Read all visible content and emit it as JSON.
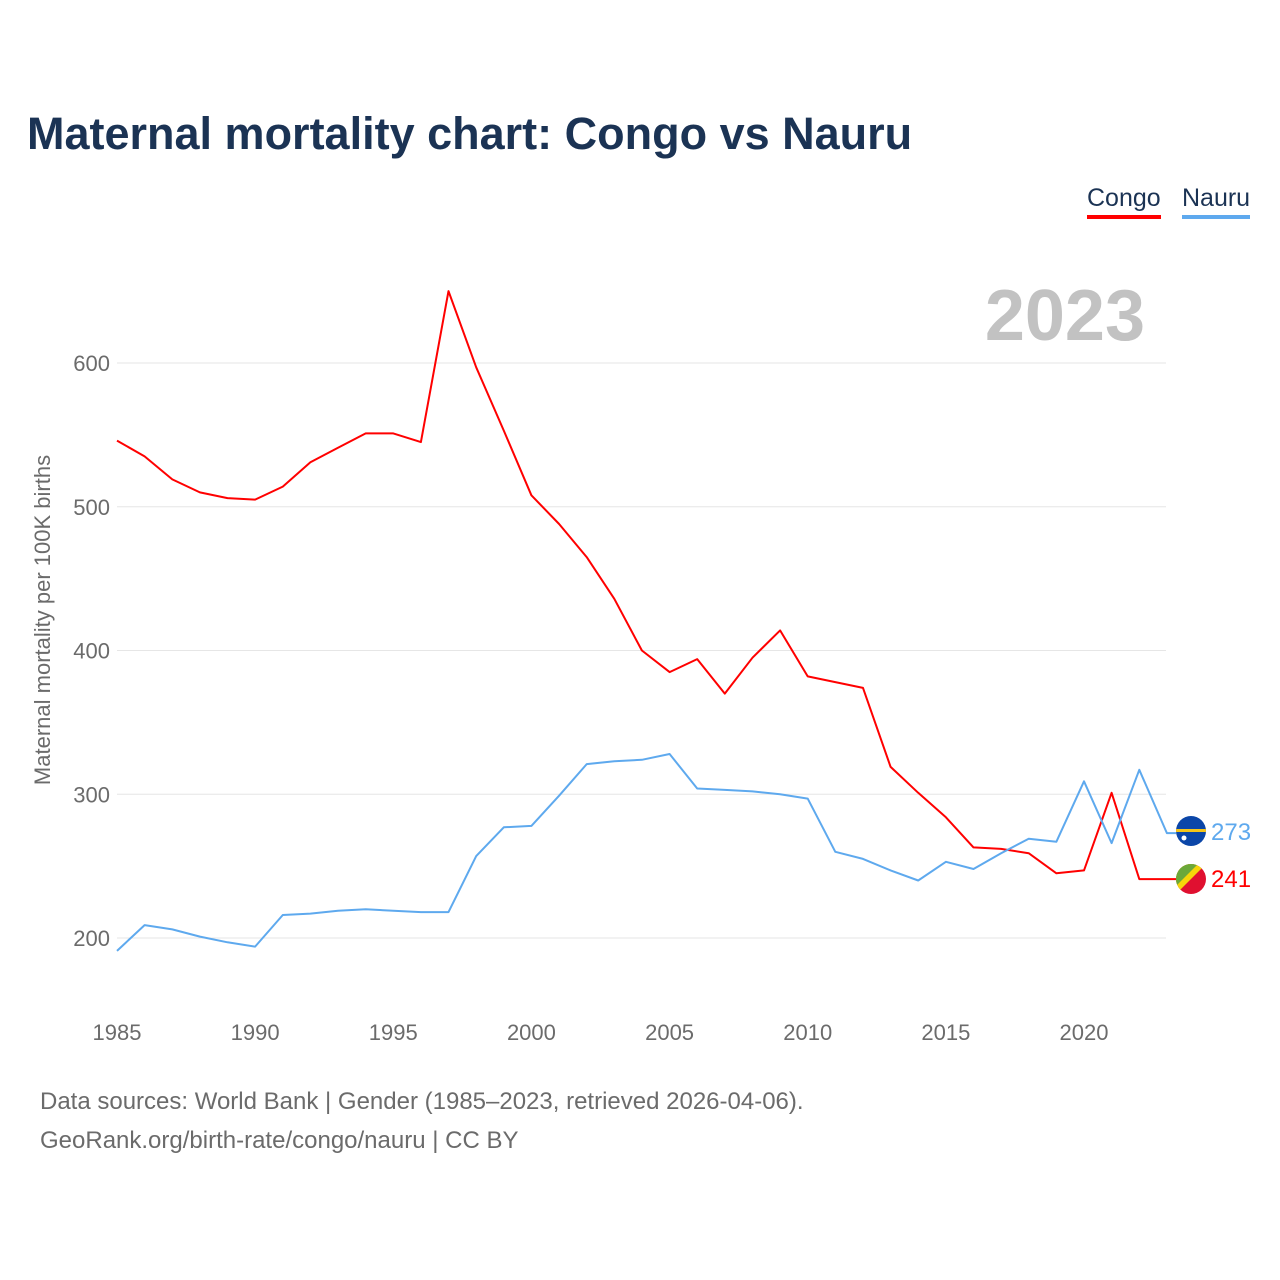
{
  "chart_data": {
    "type": "line",
    "title": "Maternal mortality chart: Congo vs Nauru",
    "xlabel": "",
    "ylabel": "Maternal mortality per 100K births",
    "year_watermark": "2023",
    "xlim": [
      1985,
      2023
    ],
    "ylim": [
      200,
      600
    ],
    "x_ticks": [
      "1985",
      "1990",
      "1995",
      "2000",
      "2005",
      "2010",
      "2015",
      "2020"
    ],
    "y_ticks": [
      "200",
      "300",
      "400",
      "500",
      "600"
    ],
    "grid": true,
    "legend_position": "top-right",
    "x": [
      1985,
      1986,
      1987,
      1988,
      1989,
      1990,
      1991,
      1992,
      1993,
      1994,
      1995,
      1996,
      1997,
      1998,
      1999,
      2000,
      2001,
      2002,
      2003,
      2004,
      2005,
      2006,
      2007,
      2008,
      2009,
      2010,
      2011,
      2012,
      2013,
      2014,
      2015,
      2016,
      2017,
      2018,
      2019,
      2020,
      2021,
      2022,
      2023
    ],
    "series": [
      {
        "name": "Congo",
        "color": "#ff0000",
        "end_label": "241",
        "values": [
          546,
          535,
          519,
          510,
          506,
          505,
          514,
          531,
          541,
          551,
          551,
          545,
          650,
          597,
          553,
          508,
          488,
          465,
          436,
          400,
          385,
          394,
          370,
          395,
          414,
          382,
          378,
          374,
          319,
          301,
          284,
          263,
          262,
          259,
          245,
          247,
          301,
          241,
          241
        ]
      },
      {
        "name": "Nauru",
        "color": "#5ea9ee",
        "end_label": "273",
        "values": [
          191,
          209,
          206,
          201,
          197,
          194,
          216,
          217,
          219,
          220,
          219,
          218,
          218,
          257,
          277,
          278,
          299,
          321,
          323,
          324,
          328,
          304,
          303,
          302,
          300,
          297,
          260,
          255,
          247,
          240,
          253,
          248,
          259,
          269,
          267,
          309,
          266,
          317,
          273
        ]
      }
    ]
  },
  "footer": {
    "sources": "Data sources: World Bank | Gender (1985–2023, retrieved 2026-04-06).",
    "license": "GeoRank.org/birth-rate/congo/nauru | CC BY"
  }
}
